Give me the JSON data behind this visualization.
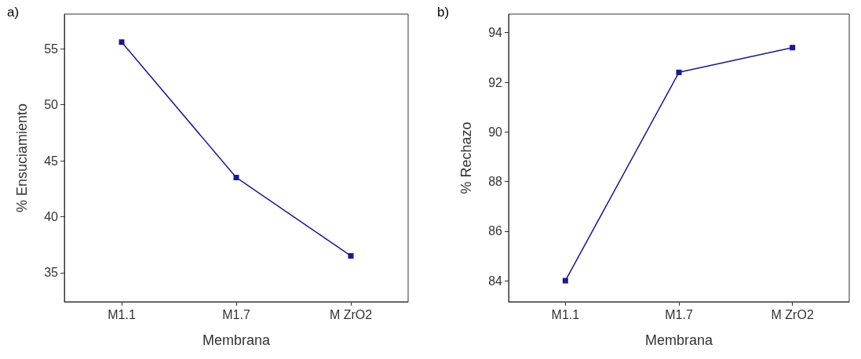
{
  "chart_data": [
    {
      "type": "line",
      "title": "a)",
      "xlabel": "Membrana",
      "ylabel": "% Ensuciamiento",
      "categories": [
        "M1.1",
        "M1.7",
        "M ZrO2"
      ],
      "values": [
        55.6,
        43.5,
        36.5
      ],
      "color": "#1a1a8c",
      "marker": "square",
      "ylim": [
        32.4,
        58.1
      ],
      "yticks": [
        35,
        40,
        45,
        50,
        55
      ]
    },
    {
      "type": "line",
      "title": "b)",
      "xlabel": "Membrana",
      "ylabel": "% Rechazo",
      "categories": [
        "M1.1",
        "M1.7",
        "M ZrO2"
      ],
      "values": [
        84.0,
        92.4,
        93.4
      ],
      "color": "#1a1a8c",
      "marker": "square",
      "ylim": [
        83.15,
        94.75
      ],
      "yticks": [
        84,
        86,
        88,
        90,
        92,
        94
      ]
    }
  ]
}
